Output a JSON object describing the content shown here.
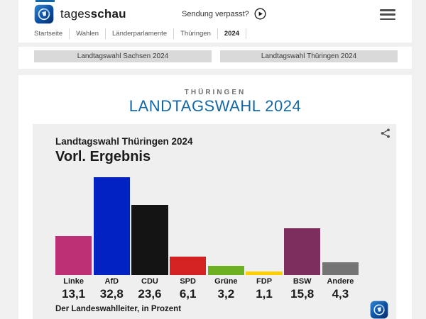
{
  "accent_color": "#1467a5",
  "header": {
    "brand_regular": "tages",
    "brand_bold": "schau",
    "broadcast_label": "Sendung verpasst?"
  },
  "breadcrumb": {
    "items": [
      "Startseite",
      "Wahlen",
      "Länderparlamente",
      "Thüringen"
    ],
    "current": "2024"
  },
  "tabs": [
    {
      "label": "Landtagswahl Sachsen 2024"
    },
    {
      "label": "Landtagswahl Thüringen 2024"
    }
  ],
  "page_header": {
    "kicker": "THÜRINGEN",
    "title": "LANDTAGSWAHL 2024"
  },
  "chart_data": {
    "type": "bar",
    "title": "Landtagswahl Thüringen 2024",
    "subtitle": "Vorl. Ergebnis",
    "source_note": "Der Landeswahlleiter, in Prozent",
    "unit": "Prozent",
    "categories": [
      "Linke",
      "AfD",
      "CDU",
      "SPD",
      "Grüne",
      "FDP",
      "BSW",
      "Andere"
    ],
    "values": [
      13.1,
      32.8,
      23.6,
      6.1,
      3.2,
      1.1,
      15.8,
      4.3
    ],
    "value_labels": [
      "13,1",
      "32,8",
      "23,6",
      "6,1",
      "3,2",
      "1,1",
      "15,8",
      "4,3"
    ],
    "colors": [
      "#be3075",
      "#0222c2",
      "#141414",
      "#d42222",
      "#6db021",
      "#ffd000",
      "#7d2d5e",
      "#747474"
    ],
    "ylim": [
      0,
      35
    ],
    "grid": false,
    "legend": "none"
  },
  "icons": {
    "logo": "tagesschau-globe",
    "play": "play-circle",
    "menu": "hamburger",
    "share": "share-nodes"
  }
}
